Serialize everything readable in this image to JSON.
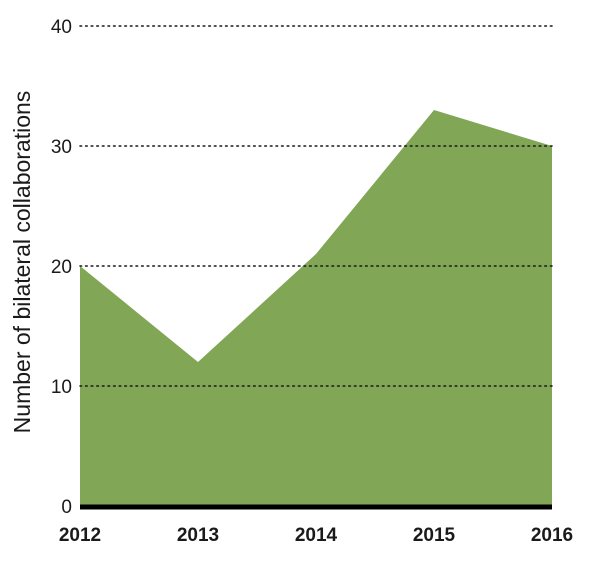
{
  "chart_data": {
    "type": "area",
    "title": "",
    "xlabel": "",
    "ylabel": "Number of bilateral collaborations",
    "categories": [
      "2012",
      "2013",
      "2014",
      "2015",
      "2016"
    ],
    "series": [
      {
        "values": [
          20,
          12,
          21,
          33,
          30
        ]
      }
    ],
    "ylim": [
      0,
      40
    ],
    "yticks": [
      "0",
      "10",
      "20",
      "30",
      "40"
    ],
    "grid": true,
    "grid_style": "dotted",
    "colors": {
      "area": "#80a656",
      "grid": "#1a1a1a",
      "baseline": "#000000",
      "text": "#1a1a1a"
    }
  }
}
